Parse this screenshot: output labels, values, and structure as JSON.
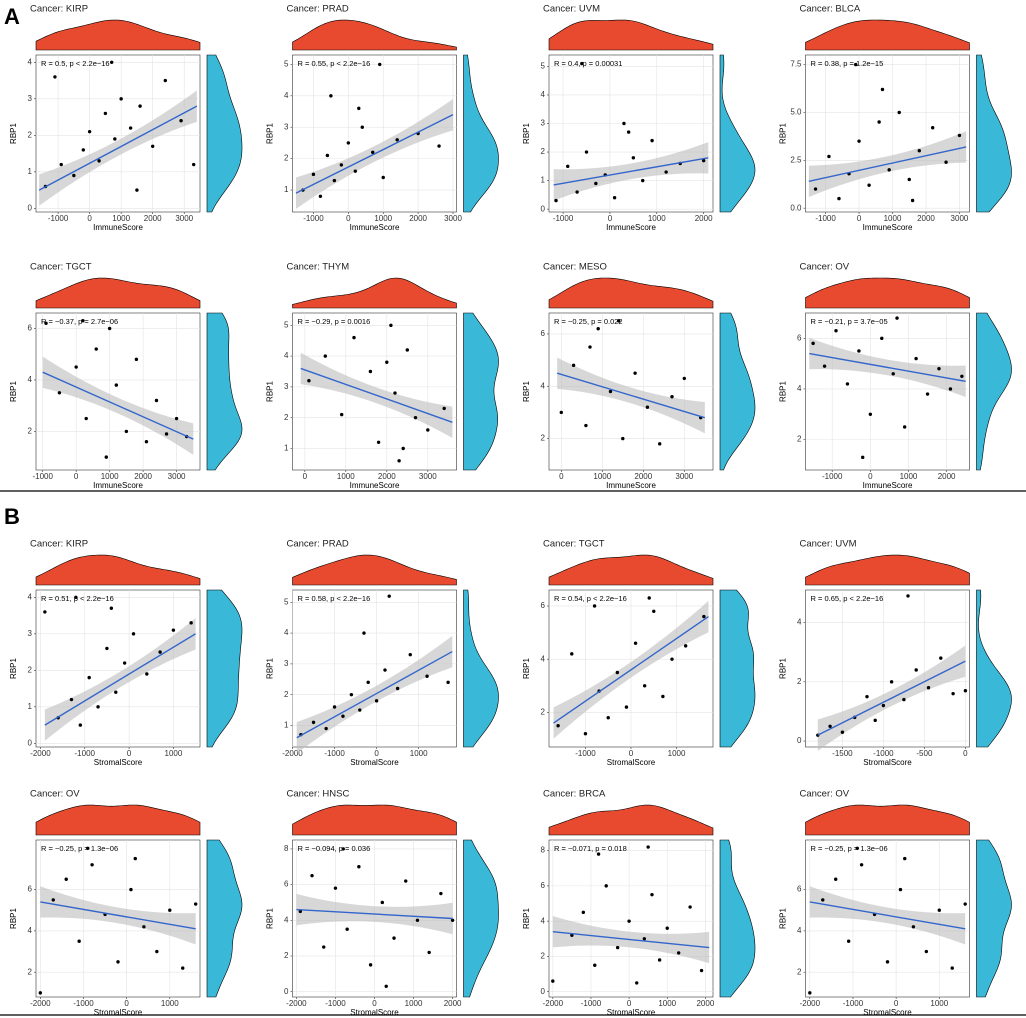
{
  "sections": [
    {
      "label": "A"
    },
    {
      "label": "B"
    }
  ],
  "chart_data": [
    {
      "type": "scatter",
      "title": "Cancer: KIRP",
      "annotation": "R = 0.5, p < 2.2e−16",
      "x_label": "ImmuneScore",
      "y_label": "RBP1",
      "xlim": [
        -1700,
        3500
      ],
      "ylim": [
        -0.1,
        4.2
      ],
      "xticks": [
        -1000,
        0,
        1000,
        2000,
        3000
      ],
      "yticks": [
        0,
        1,
        2,
        3,
        4
      ],
      "grid": true,
      "x": [
        -1400,
        -900,
        -500,
        -200,
        0,
        300,
        500,
        800,
        1000,
        1300,
        1600,
        2000,
        2400,
        2900,
        3300,
        -1100,
        700,
        1500
      ],
      "y": [
        0.6,
        1.2,
        0.9,
        1.6,
        2.1,
        1.3,
        2.6,
        1.9,
        3.0,
        2.2,
        2.8,
        1.7,
        3.5,
        2.4,
        1.2,
        3.6,
        4.0,
        0.5
      ],
      "fit_x": [
        -1600,
        3400
      ],
      "fit_y": [
        0.5,
        2.8
      ]
    },
    {
      "type": "scatter",
      "title": "Cancer: PRAD",
      "annotation": "R = 0.55, p < 2.2e−16",
      "x_label": "ImmuneScore",
      "y_label": "RBP1",
      "xlim": [
        -1600,
        3100
      ],
      "ylim": [
        0.3,
        5.3
      ],
      "xticks": [
        -1000,
        0,
        1000,
        2000,
        3000
      ],
      "yticks": [
        1,
        2,
        3,
        4,
        5
      ],
      "grid": true,
      "x": [
        -1300,
        -1000,
        -800,
        -600,
        -400,
        -200,
        0,
        200,
        400,
        700,
        1000,
        1400,
        2000,
        2600,
        -500,
        300,
        900
      ],
      "y": [
        1.0,
        1.5,
        0.8,
        2.1,
        1.3,
        1.8,
        2.5,
        1.6,
        3.0,
        2.2,
        1.4,
        2.6,
        2.8,
        2.4,
        4.0,
        3.6,
        5.0
      ],
      "fit_x": [
        -1500,
        3000
      ],
      "fit_y": [
        0.9,
        3.4
      ]
    },
    {
      "type": "scatter",
      "title": "Cancer: UVM",
      "annotation": "R = 0.4, p = 0.00031",
      "x_label": "ImmuneScore",
      "y_label": "RBP1",
      "xlim": [
        -1300,
        2200
      ],
      "ylim": [
        -0.1,
        5.4
      ],
      "xticks": [
        -1000,
        0,
        1000,
        2000
      ],
      "yticks": [
        0,
        1,
        2,
        3,
        4,
        5
      ],
      "grid": true,
      "x": [
        -1150,
        -900,
        -700,
        -500,
        -300,
        -100,
        100,
        300,
        500,
        700,
        900,
        1200,
        1500,
        2000,
        -600,
        400
      ],
      "y": [
        0.3,
        1.5,
        0.6,
        2.0,
        0.9,
        1.2,
        0.4,
        3.0,
        1.8,
        1.0,
        2.4,
        1.3,
        1.6,
        1.7,
        5.1,
        2.7
      ],
      "fit_x": [
        -1200,
        2100
      ],
      "fit_y": [
        0.85,
        1.8
      ]
    },
    {
      "type": "scatter",
      "title": "Cancer: BLCA",
      "annotation": "R = 0.38, p = 1.2e−15",
      "x_label": "ImmuneScore",
      "y_label": "RBP1",
      "xlim": [
        -1600,
        3300
      ],
      "ylim": [
        -0.2,
        8
      ],
      "xticks": [
        -1000,
        0,
        1000,
        2000,
        3000
      ],
      "yticks": [
        {
          "value": 0,
          "label": "0.0"
        },
        2.5,
        {
          "value": 5,
          "label": "5.0"
        },
        7.5
      ],
      "grid": true,
      "x": [
        -1300,
        -900,
        -600,
        -300,
        0,
        300,
        600,
        900,
        1200,
        1500,
        1800,
        2200,
        2600,
        3000,
        -100,
        700,
        1600
      ],
      "y": [
        1.0,
        2.7,
        0.5,
        1.8,
        3.5,
        1.2,
        4.5,
        2.0,
        5.0,
        1.5,
        3.0,
        4.2,
        2.4,
        3.8,
        7.5,
        6.2,
        0.4
      ],
      "fit_x": [
        -1500,
        3200
      ],
      "fit_y": [
        1.4,
        3.2
      ]
    },
    {
      "type": "scatter",
      "title": "Cancer: TGCT",
      "annotation": "R = −0.37, p = 2.7e−06",
      "x_label": "ImmuneScore",
      "y_label": "RBP1",
      "xlim": [
        -1200,
        3700
      ],
      "ylim": [
        0.5,
        6.6
      ],
      "xticks": [
        -1000,
        0,
        1000,
        2000,
        3000
      ],
      "yticks": [
        2,
        4,
        6
      ],
      "grid": true,
      "x": [
        -900,
        -500,
        0,
        300,
        600,
        900,
        1200,
        1500,
        1800,
        2100,
        2400,
        2700,
        3000,
        3300,
        200,
        1000
      ],
      "y": [
        6.2,
        3.5,
        4.5,
        2.5,
        5.2,
        1.0,
        3.8,
        2.0,
        4.8,
        1.6,
        3.2,
        1.9,
        2.5,
        1.8,
        6.3,
        6.0
      ],
      "fit_x": [
        -1000,
        3500
      ],
      "fit_y": [
        4.3,
        1.7
      ]
    },
    {
      "type": "scatter",
      "title": "Cancer: THYM",
      "annotation": "R = −0.29, p = 0.0016",
      "x_label": "ImmuneScore",
      "y_label": "RBP1",
      "xlim": [
        -300,
        3700
      ],
      "ylim": [
        0.3,
        5.4
      ],
      "xticks": [
        0,
        1000,
        2000,
        3000
      ],
      "yticks": [
        1,
        2,
        3,
        4,
        5
      ],
      "grid": true,
      "x": [
        100,
        500,
        900,
        1200,
        1600,
        1800,
        2000,
        2200,
        2300,
        2500,
        2700,
        3000,
        3400,
        2100,
        2400
      ],
      "y": [
        3.2,
        4.0,
        2.1,
        4.6,
        3.5,
        1.2,
        3.8,
        2.8,
        0.6,
        4.2,
        2.0,
        1.6,
        2.3,
        5.0,
        1.0
      ],
      "fit_x": [
        -100,
        3600
      ],
      "fit_y": [
        3.6,
        1.85
      ]
    },
    {
      "type": "scatter",
      "title": "Cancer: MESO",
      "annotation": "R = −0.25, p = 0.022",
      "x_label": "ImmuneScore",
      "y_label": "RBP1",
      "xlim": [
        -300,
        3700
      ],
      "ylim": [
        0.8,
        6.8
      ],
      "xticks": [
        0,
        1000,
        2000,
        3000
      ],
      "yticks": [
        2,
        4,
        6
      ],
      "grid": true,
      "x": [
        0,
        300,
        600,
        900,
        1200,
        1500,
        1800,
        2100,
        2400,
        2700,
        3000,
        3400,
        1400,
        700
      ],
      "y": [
        3.0,
        4.8,
        2.5,
        6.2,
        3.8,
        2.0,
        4.5,
        3.2,
        1.8,
        3.6,
        4.3,
        2.8,
        6.5,
        5.5
      ],
      "fit_x": [
        -100,
        3500
      ],
      "fit_y": [
        4.5,
        2.8
      ]
    },
    {
      "type": "scatter",
      "title": "Cancer: OV",
      "annotation": "R = −0.21, p = 3.7e−05",
      "x_label": "ImmuneScore",
      "y_label": "RBP1",
      "xlim": [
        -1700,
        2600
      ],
      "ylim": [
        0.8,
        7
      ],
      "xticks": [
        -1000,
        0,
        1000,
        2000
      ],
      "yticks": [
        2,
        4,
        6
      ],
      "grid": true,
      "x": [
        -1500,
        -1200,
        -900,
        -600,
        -300,
        0,
        300,
        600,
        900,
        1200,
        1500,
        1800,
        2100,
        2400,
        -200,
        700
      ],
      "y": [
        5.8,
        4.9,
        6.3,
        4.2,
        5.5,
        3.0,
        6.0,
        4.6,
        2.5,
        5.2,
        3.8,
        4.8,
        4.0,
        4.5,
        1.3,
        6.8
      ],
      "fit_x": [
        -1600,
        2500
      ],
      "fit_y": [
        5.4,
        4.3
      ]
    },
    {
      "type": "scatter",
      "title": "Cancer: KIRP",
      "annotation": "R = 0.51, p < 2.2e−16",
      "x_label": "StromalScore",
      "y_label": "RBP1",
      "xlim": [
        -2100,
        1600
      ],
      "ylim": [
        -0.1,
        4.2
      ],
      "xticks": [
        -2000,
        -1000,
        0,
        1000
      ],
      "yticks": [
        0,
        1,
        2,
        3,
        4
      ],
      "grid": true,
      "x": [
        -1900,
        -1600,
        -1300,
        -1100,
        -900,
        -700,
        -500,
        -300,
        -100,
        100,
        400,
        700,
        1000,
        1400,
        -1200,
        -400
      ],
      "y": [
        3.6,
        0.7,
        1.2,
        0.5,
        1.8,
        1.0,
        2.6,
        1.4,
        2.2,
        3.0,
        1.9,
        2.5,
        3.1,
        3.3,
        4.0,
        3.7
      ],
      "fit_x": [
        -1900,
        1500
      ],
      "fit_y": [
        0.5,
        3.0
      ]
    },
    {
      "type": "scatter",
      "title": "Cancer: PRAD",
      "annotation": "R = 0.58, p < 2.2e−16",
      "x_label": "StromalScore",
      "y_label": "RBP1",
      "xlim": [
        -2000,
        1900
      ],
      "ylim": [
        0.3,
        5.4
      ],
      "xticks": [
        -2000,
        -1000,
        0,
        1000
      ],
      "yticks": [
        1,
        2,
        3,
        4,
        5
      ],
      "grid": true,
      "x": [
        -1800,
        -1500,
        -1200,
        -1000,
        -800,
        -600,
        -400,
        -200,
        0,
        200,
        500,
        800,
        1200,
        1700,
        -300,
        300
      ],
      "y": [
        0.7,
        1.1,
        0.9,
        1.6,
        1.3,
        2.0,
        1.5,
        2.4,
        1.8,
        2.8,
        2.2,
        3.3,
        2.6,
        2.4,
        4.0,
        5.2
      ],
      "fit_x": [
        -1900,
        1800
      ],
      "fit_y": [
        0.6,
        3.4
      ]
    },
    {
      "type": "scatter",
      "title": "Cancer: TGCT",
      "annotation": "R = 0.54, p < 2.2e−16",
      "x_label": "StromalScore",
      "y_label": "RBP1",
      "xlim": [
        -1800,
        1800
      ],
      "ylim": [
        0.7,
        6.6
      ],
      "xticks": [
        -1000,
        0,
        1000
      ],
      "yticks": [
        2,
        4,
        6
      ],
      "grid": true,
      "x": [
        -1600,
        -1300,
        -1000,
        -700,
        -500,
        -300,
        -100,
        100,
        300,
        500,
        700,
        900,
        1200,
        1600,
        -800,
        400
      ],
      "y": [
        1.5,
        4.2,
        1.2,
        2.8,
        1.8,
        3.5,
        2.2,
        4.6,
        3.0,
        5.8,
        2.6,
        4.0,
        4.5,
        5.6,
        6.0,
        6.3
      ],
      "fit_x": [
        -1700,
        1700
      ],
      "fit_y": [
        1.6,
        5.6
      ]
    },
    {
      "type": "scatter",
      "title": "Cancer: UVM",
      "annotation": "R = 0.65, p < 2.2e−16",
      "x_label": "StromalScore",
      "y_label": "RBP1",
      "xlim": [
        -1950,
        50
      ],
      "ylim": [
        -0.2,
        5.1
      ],
      "xticks": [
        -1500,
        -1000,
        -500,
        0
      ],
      "yticks": [
        0,
        2,
        4
      ],
      "grid": true,
      "x": [
        -1800,
        -1650,
        -1500,
        -1350,
        -1200,
        -1100,
        -1000,
        -900,
        -750,
        -600,
        -450,
        -300,
        -150,
        0,
        -700
      ],
      "y": [
        0.2,
        0.5,
        0.3,
        0.8,
        1.5,
        0.7,
        1.2,
        2.0,
        1.4,
        2.4,
        1.8,
        2.8,
        1.6,
        1.7,
        4.9
      ],
      "fit_x": [
        -1800,
        0
      ],
      "fit_y": [
        0.2,
        2.7
      ]
    },
    {
      "type": "scatter",
      "title": "Cancer: OV",
      "annotation": "R = −0.25, p = 1.3e−06",
      "x_label": "StromalScore",
      "y_label": "RBP1",
      "xlim": [
        -2100,
        1700
      ],
      "ylim": [
        0.8,
        8.4
      ],
      "xticks": [
        -2000,
        -1000,
        0,
        1000
      ],
      "yticks": [
        2,
        4,
        6
      ],
      "grid": true,
      "x": [
        -2000,
        -1700,
        -1400,
        -1100,
        -800,
        -500,
        -200,
        100,
        400,
        700,
        1000,
        1300,
        1600,
        -900,
        200
      ],
      "y": [
        1.0,
        5.5,
        6.5,
        3.5,
        7.2,
        4.8,
        2.5,
        6.0,
        4.2,
        3.0,
        5.0,
        2.2,
        5.3,
        8.0,
        7.5
      ],
      "fit_x": [
        -2000,
        1600
      ],
      "fit_y": [
        5.4,
        4.1
      ]
    },
    {
      "type": "scatter",
      "title": "Cancer: HNSC",
      "annotation": "R = −0.094, p = 0.036",
      "x_label": "StromalScore",
      "y_label": "RBP1",
      "xlim": [
        -2100,
        2100
      ],
      "ylim": [
        -0.3,
        8.5
      ],
      "xticks": [
        -2000,
        -1000,
        0,
        1000,
        2000
      ],
      "yticks": [
        0,
        2,
        4,
        6,
        8
      ],
      "grid": true,
      "x": [
        -1900,
        -1600,
        -1300,
        -1000,
        -700,
        -400,
        -100,
        200,
        500,
        800,
        1100,
        1400,
        1700,
        2000,
        -800,
        300
      ],
      "y": [
        4.5,
        6.5,
        2.5,
        5.8,
        3.5,
        7.0,
        1.5,
        5.0,
        3.0,
        6.2,
        4.0,
        2.2,
        5.5,
        4.0,
        8.0,
        0.3
      ],
      "fit_x": [
        -2000,
        2000
      ],
      "fit_y": [
        4.6,
        4.1
      ]
    },
    {
      "type": "scatter",
      "title": "Cancer: BRCA",
      "annotation": "R = −0.071, p = 0.018",
      "x_label": "StromalScore",
      "y_label": "RBP1",
      "xlim": [
        -2100,
        2200
      ],
      "ylim": [
        -0.3,
        8.6
      ],
      "xticks": [
        -2000,
        -1000,
        0,
        1000,
        2000
      ],
      "yticks": [
        0,
        2,
        4,
        6,
        8
      ],
      "grid": true,
      "x": [
        -2000,
        -1500,
        -1200,
        -900,
        -600,
        -300,
        0,
        200,
        400,
        600,
        800,
        1000,
        1300,
        1600,
        1900,
        -800,
        500
      ],
      "y": [
        0.6,
        3.2,
        4.5,
        1.5,
        6.0,
        2.5,
        4.0,
        0.5,
        3.0,
        5.5,
        1.8,
        3.6,
        2.2,
        4.8,
        1.2,
        7.8,
        8.2
      ],
      "fit_x": [
        -2000,
        2100
      ],
      "fit_y": [
        3.4,
        2.5
      ]
    },
    {
      "type": "scatter",
      "title": "Cancer: OV",
      "annotation": "R = −0.25, p = 1.3e−06",
      "x_label": "StromalScore",
      "y_label": "RBP1",
      "xlim": [
        -2100,
        1700
      ],
      "ylim": [
        0.8,
        8.4
      ],
      "xticks": [
        -2000,
        -1000,
        0,
        1000
      ],
      "yticks": [
        2,
        4,
        6
      ],
      "grid": true,
      "x": [
        -2000,
        -1700,
        -1400,
        -1100,
        -800,
        -500,
        -200,
        100,
        400,
        700,
        1000,
        1300,
        1600,
        -900,
        200
      ],
      "y": [
        1.0,
        5.5,
        6.5,
        3.5,
        7.2,
        4.8,
        2.5,
        6.0,
        4.2,
        3.0,
        5.0,
        2.2,
        5.3,
        8.0,
        7.5
      ],
      "fit_x": [
        -2000,
        1600
      ],
      "fit_y": [
        5.4,
        4.1
      ]
    }
  ]
}
